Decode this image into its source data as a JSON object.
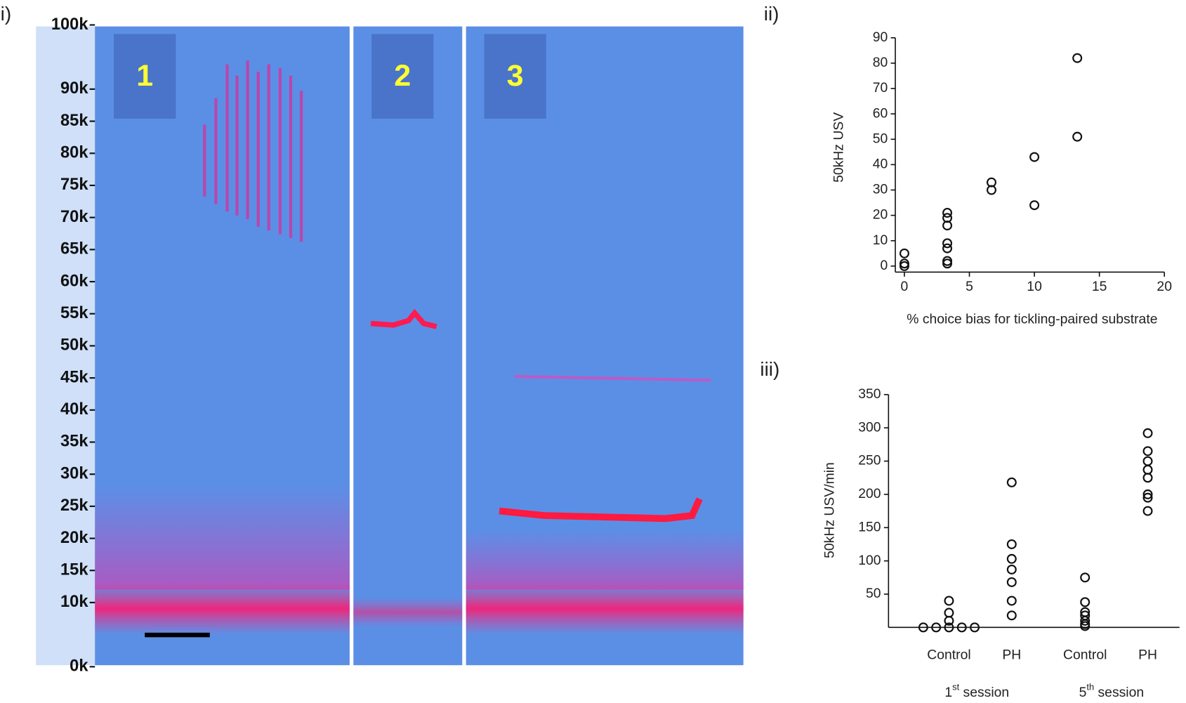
{
  "chart_data": [
    {
      "type": "spectrogram",
      "panel_label": "i)",
      "annotations": [
        "1",
        "2",
        "3"
      ],
      "ylim": [
        0,
        100000
      ],
      "yticks": [
        {
          "value": 0,
          "label": "0k"
        },
        {
          "value": 10000,
          "label": "10k"
        },
        {
          "value": 15000,
          "label": "15k"
        },
        {
          "value": 20000,
          "label": "20k"
        },
        {
          "value": 25000,
          "label": "25k"
        },
        {
          "value": 30000,
          "label": "30k"
        },
        {
          "value": 35000,
          "label": "35k"
        },
        {
          "value": 40000,
          "label": "40k"
        },
        {
          "value": 45000,
          "label": "45k"
        },
        {
          "value": 50000,
          "label": "50k"
        },
        {
          "value": 55000,
          "label": "55k"
        },
        {
          "value": 60000,
          "label": "60k"
        },
        {
          "value": 65000,
          "label": "65k"
        },
        {
          "value": 70000,
          "label": "70k"
        },
        {
          "value": 75000,
          "label": "75k"
        },
        {
          "value": 80000,
          "label": "80k"
        },
        {
          "value": 85000,
          "label": "85k"
        },
        {
          "value": 90000,
          "label": "90k"
        },
        {
          "value": 100000,
          "label": "100k"
        }
      ]
    },
    {
      "type": "scatter",
      "panel_label": "ii)",
      "x_label": "% choice bias for tickling-paired substrate",
      "y_label": "50kHz USV",
      "x": [
        0,
        0,
        0,
        3.3,
        3.3,
        3.3,
        3.3,
        3.3,
        3.3,
        3.3,
        6.7,
        6.7,
        10,
        10,
        13.3,
        13.3
      ],
      "y": [
        5,
        1,
        0,
        21,
        19,
        16,
        9,
        7,
        2,
        1,
        33,
        30,
        43,
        24,
        82,
        51
      ],
      "color": "#111111",
      "xlim": [
        0,
        20
      ],
      "xticks": [
        0,
        5,
        10,
        15,
        20
      ],
      "ylim": [
        0,
        90
      ],
      "yticks": [
        0,
        10,
        20,
        30,
        40,
        50,
        60,
        70,
        80,
        90
      ]
    },
    {
      "type": "dot",
      "panel_label": "iii)",
      "y_label": "50kHz USV/min",
      "categories": [
        "Control",
        "PH",
        "Control",
        "PH"
      ],
      "groups": [
        {
          "num": "1",
          "suffix": "st",
          "word": "session"
        },
        {
          "num": "5",
          "suffix": "th",
          "word": "session"
        }
      ],
      "values": [
        [
          0,
          0,
          0,
          0,
          0,
          10,
          22,
          40
        ],
        [
          218,
          125,
          103,
          87,
          68,
          40,
          18
        ],
        [
          75,
          38,
          23,
          18,
          10,
          5,
          2
        ],
        [
          292,
          265,
          250,
          237,
          225,
          200,
          195,
          175
        ]
      ],
      "color": "#111111",
      "ylim": [
        0,
        350
      ],
      "yticks": [
        50,
        100,
        150,
        200,
        250,
        300,
        350
      ]
    }
  ]
}
